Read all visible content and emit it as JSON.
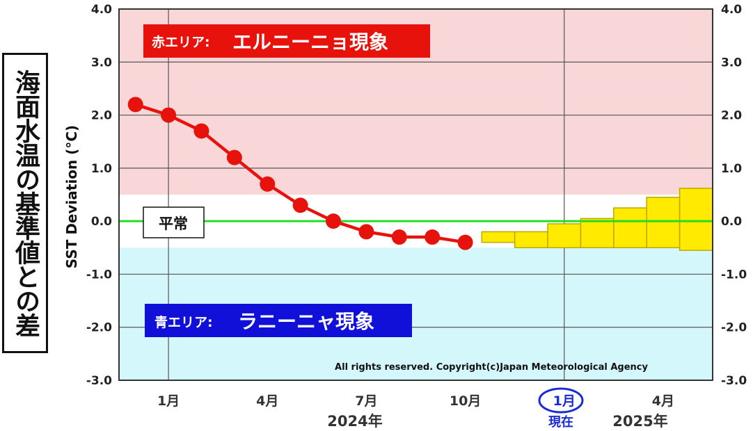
{
  "side_title": "海面水温の基準値との差",
  "colors": {
    "el_nino_zone": "#f9d6d8",
    "la_nina_zone": "#d3f7fb",
    "normal_zone": "#ffffff",
    "observed_line": "#e8120c",
    "forecast_fill": "#ffea00",
    "zero_line": "#22dd22",
    "el_nino_label_bg": "#e8120c",
    "la_nina_label_bg": "#1010d8",
    "current_circle": "#1a2bd6"
  },
  "annotations": {
    "el_nino_prefix": "赤エリア:",
    "el_nino_text": "エルニーニョ現象",
    "la_nina_prefix": "青エリア:",
    "la_nina_text": "ラニーニャ現象",
    "normal": "平常",
    "copyright": "All rights reserved. Copyright(c)Japan Meteorological Agency",
    "current": "現在",
    "year_2024": "2024年",
    "year_2025": "2025年"
  },
  "chart_data": {
    "type": "line",
    "title": "",
    "ylabel": "SST Deviation (°C)",
    "xlabel": "",
    "ylim": [
      -3.0,
      4.0
    ],
    "yticks": [
      "4.0",
      "3.0",
      "2.0",
      "1.0",
      "0.0",
      "-1.0",
      "-2.0",
      "-3.0"
    ],
    "xtick_labels": [
      {
        "month_index": 1,
        "label": "1月"
      },
      {
        "month_index": 4,
        "label": "4月"
      },
      {
        "month_index": 7,
        "label": "7月"
      },
      {
        "month_index": 10,
        "label": "10月"
      },
      {
        "month_index": 13,
        "label": "1月"
      },
      {
        "month_index": 16,
        "label": "4月"
      }
    ],
    "grid": true,
    "zones": {
      "el_nino_threshold": 0.5,
      "la_nina_threshold": -0.5
    },
    "observed": {
      "months": [
        0,
        1,
        2,
        3,
        4,
        5,
        6,
        7,
        8,
        9,
        10
      ],
      "values": [
        2.2,
        2.0,
        1.7,
        1.2,
        0.7,
        0.3,
        0.0,
        -0.2,
        -0.3,
        -0.3,
        -0.4
      ]
    },
    "forecast": {
      "months": [
        11,
        12,
        13,
        14,
        15,
        16,
        17
      ],
      "lower": [
        -0.4,
        -0.5,
        -0.5,
        -0.5,
        -0.5,
        -0.5,
        -0.55
      ],
      "upper": [
        -0.2,
        -0.2,
        -0.05,
        0.05,
        0.25,
        0.45,
        0.62
      ]
    }
  }
}
